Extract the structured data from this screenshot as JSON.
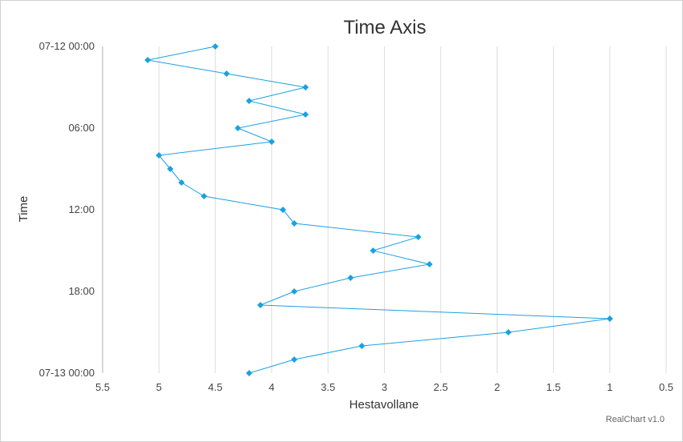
{
  "chart_data": {
    "type": "line",
    "title": "Time Axis",
    "xlabel": "Hestavollane",
    "ylabel": "Time",
    "x_axis_reversed": true,
    "xlim": [
      0.5,
      5.5
    ],
    "x_ticks": [
      5.5,
      5,
      4.5,
      4,
      3.5,
      3,
      2.5,
      2,
      1.5,
      1,
      0.5
    ],
    "ylim_hours": [
      0,
      24
    ],
    "y_ticks": [
      {
        "hour": 0,
        "label": "07-12 00:00"
      },
      {
        "hour": 6,
        "label": "06:00"
      },
      {
        "hour": 12,
        "label": "12:00"
      },
      {
        "hour": 18,
        "label": "18:00"
      },
      {
        "hour": 24,
        "label": "07-13 00:00"
      }
    ],
    "grid": "vertical",
    "line_color": "#1ba1e2",
    "marker": "diamond",
    "series": [
      {
        "points": [
          {
            "time": "07-12 00:00",
            "hour": 0,
            "value": 4.5
          },
          {
            "time": "07-12 01:00",
            "hour": 1,
            "value": 5.1
          },
          {
            "time": "07-12 02:00",
            "hour": 2,
            "value": 4.4
          },
          {
            "time": "07-12 03:00",
            "hour": 3,
            "value": 3.7
          },
          {
            "time": "07-12 04:00",
            "hour": 4,
            "value": 4.2
          },
          {
            "time": "07-12 05:00",
            "hour": 5,
            "value": 3.7
          },
          {
            "time": "07-12 06:00",
            "hour": 6,
            "value": 4.3
          },
          {
            "time": "07-12 07:00",
            "hour": 7,
            "value": 4.0
          },
          {
            "time": "07-12 08:00",
            "hour": 8,
            "value": 5.0
          },
          {
            "time": "07-12 09:00",
            "hour": 9,
            "value": 4.9
          },
          {
            "time": "07-12 10:00",
            "hour": 10,
            "value": 4.8
          },
          {
            "time": "07-12 11:00",
            "hour": 11,
            "value": 4.6
          },
          {
            "time": "07-12 12:00",
            "hour": 12,
            "value": 3.9
          },
          {
            "time": "07-12 13:00",
            "hour": 13,
            "value": 3.8
          },
          {
            "time": "07-12 14:00",
            "hour": 14,
            "value": 2.7
          },
          {
            "time": "07-12 15:00",
            "hour": 15,
            "value": 3.1
          },
          {
            "time": "07-12 16:00",
            "hour": 16,
            "value": 2.6
          },
          {
            "time": "07-12 17:00",
            "hour": 17,
            "value": 3.3
          },
          {
            "time": "07-12 18:00",
            "hour": 18,
            "value": 3.8
          },
          {
            "time": "07-12 19:00",
            "hour": 19,
            "value": 4.1
          },
          {
            "time": "07-12 20:00",
            "hour": 20,
            "value": 1.0
          },
          {
            "time": "07-12 21:00",
            "hour": 21,
            "value": 1.9
          },
          {
            "time": "07-12 22:00",
            "hour": 22,
            "value": 3.2
          },
          {
            "time": "07-12 23:00",
            "hour": 23,
            "value": 3.8
          },
          {
            "time": "07-13 00:00",
            "hour": 24,
            "value": 4.2
          }
        ]
      }
    ]
  },
  "credit": "RealChart v1.0"
}
